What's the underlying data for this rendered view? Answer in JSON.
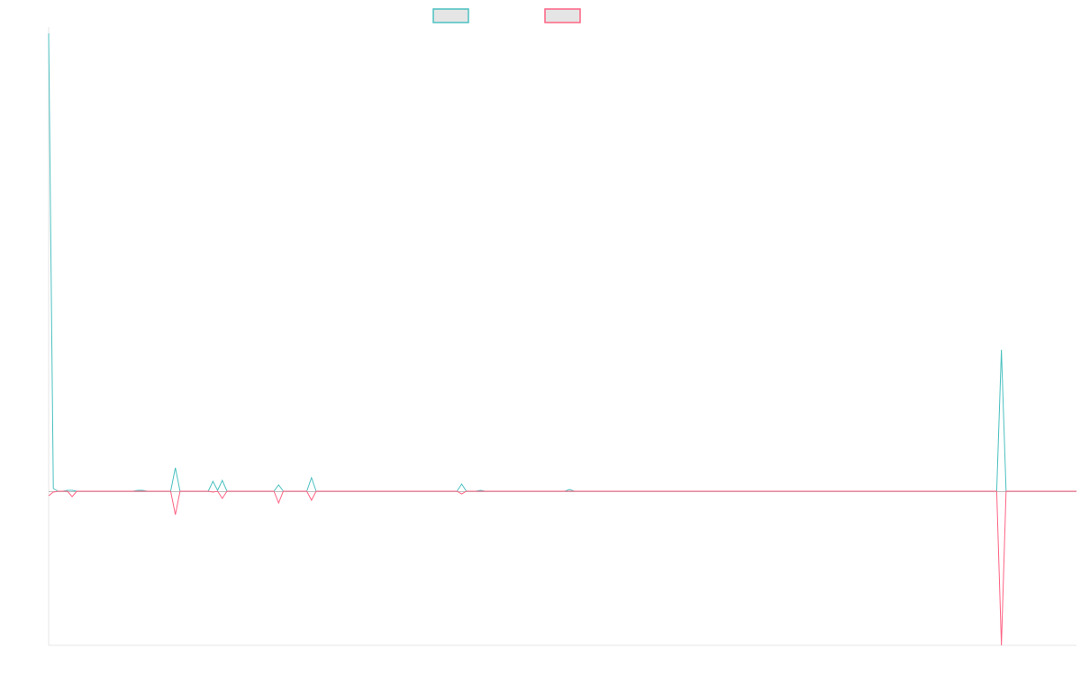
{
  "chart_data": {
    "type": "line",
    "title": "",
    "xlabel": "",
    "ylabel": "",
    "legend": "top",
    "grid": false,
    "point_count": 220,
    "ylim": [
      -171,
      508
    ],
    "series": [
      {
        "color": "#4bc0c0",
        "points": [
          [
            0,
            508
          ],
          [
            1,
            3
          ],
          [
            4,
            1
          ],
          [
            5,
            1
          ],
          [
            19,
            1
          ],
          [
            20,
            1
          ],
          [
            26,
            0
          ],
          [
            27,
            26
          ],
          [
            28,
            0
          ],
          [
            35,
            11
          ],
          [
            36,
            1
          ],
          [
            37,
            12
          ],
          [
            38,
            0
          ],
          [
            48,
            0
          ],
          [
            49,
            7
          ],
          [
            50,
            0
          ],
          [
            56,
            15
          ],
          [
            57,
            0
          ],
          [
            87,
            0
          ],
          [
            88,
            8
          ],
          [
            89,
            0
          ],
          [
            92,
            1
          ],
          [
            98,
            0
          ],
          [
            104,
            0
          ],
          [
            111,
            2
          ],
          [
            112,
            0
          ],
          [
            202,
            0
          ],
          [
            203,
            157
          ],
          [
            204,
            0
          ]
        ]
      },
      {
        "color": "#ff6384",
        "points": [
          [
            0,
            -5
          ],
          [
            1,
            -1
          ],
          [
            5,
            -6
          ],
          [
            6,
            0
          ],
          [
            26,
            0
          ],
          [
            27,
            -26
          ],
          [
            28,
            0
          ],
          [
            35,
            -1
          ],
          [
            37,
            -8
          ],
          [
            38,
            0
          ],
          [
            48,
            0
          ],
          [
            49,
            -13
          ],
          [
            50,
            0
          ],
          [
            56,
            -10
          ],
          [
            57,
            0
          ],
          [
            88,
            -3
          ],
          [
            89,
            0
          ],
          [
            202,
            0
          ],
          [
            203,
            -171
          ],
          [
            204,
            0
          ]
        ]
      }
    ]
  }
}
